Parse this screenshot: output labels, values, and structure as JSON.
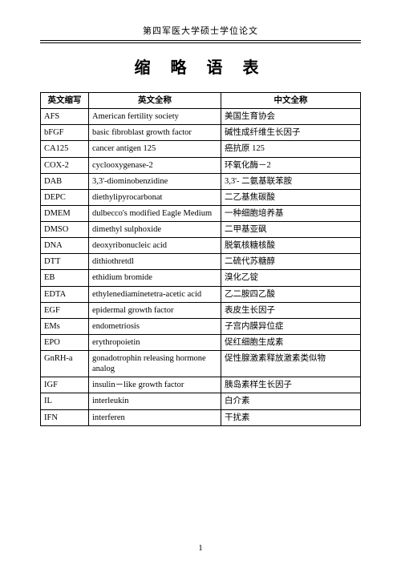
{
  "header": "第四军医大学硕士学位论文",
  "title": "缩 略 语 表",
  "pagenum": "1",
  "columns": [
    "英文缩写",
    "英文全称",
    "中文全称"
  ],
  "rows": [
    [
      "AFS",
      "American fertility society",
      "美国生育协会"
    ],
    [
      "bFGF",
      "basic fibroblast growth factor",
      "碱性成纤维生长因子"
    ],
    [
      "CA125",
      "cancer antigen 125",
      "癌抗原 125"
    ],
    [
      "COX-2",
      "cyclooxygenase-2",
      "环氧化酶－2"
    ],
    [
      "DAB",
      "3,3'-diominobenzidine",
      "3,3'- 二氨基联苯胺"
    ],
    [
      "DEPC",
      "diethylipyrocarbonat",
      "二乙基焦碳酸"
    ],
    [
      "DMEM",
      "dulbecco's modified Eagle Medium",
      "一种细胞培养基"
    ],
    [
      "DMSO",
      "dimethyl sulphoxide",
      "二甲基亚砜"
    ],
    [
      "DNA",
      "deoxyribonucleic acid",
      "脱氧核糖核酸"
    ],
    [
      "DTT",
      "dithiothretdl",
      "二硫代苏糖醇"
    ],
    [
      "EB",
      "ethidium bromide",
      "溴化乙锭"
    ],
    [
      "EDTA",
      "ethylenediaminetetra-acetic acid",
      "乙二胺四乙酸"
    ],
    [
      "EGF",
      "epidermal growth factor",
      "表皮生长因子"
    ],
    [
      "EMs",
      "endometriosis",
      "子宫内膜异位症"
    ],
    [
      "EPO",
      "erythropoietin",
      "促红细胞生成素"
    ],
    [
      "GnRH-a",
      "gonadotrophin releasing hormone analog",
      "促性腺激素释放激素类似物"
    ],
    [
      "IGF",
      "insulin－like growth factor",
      "胰岛素样生长因子"
    ],
    [
      "IL",
      "interleukin",
      "白介素"
    ],
    [
      "IFN",
      "interferen",
      "干扰素"
    ]
  ]
}
